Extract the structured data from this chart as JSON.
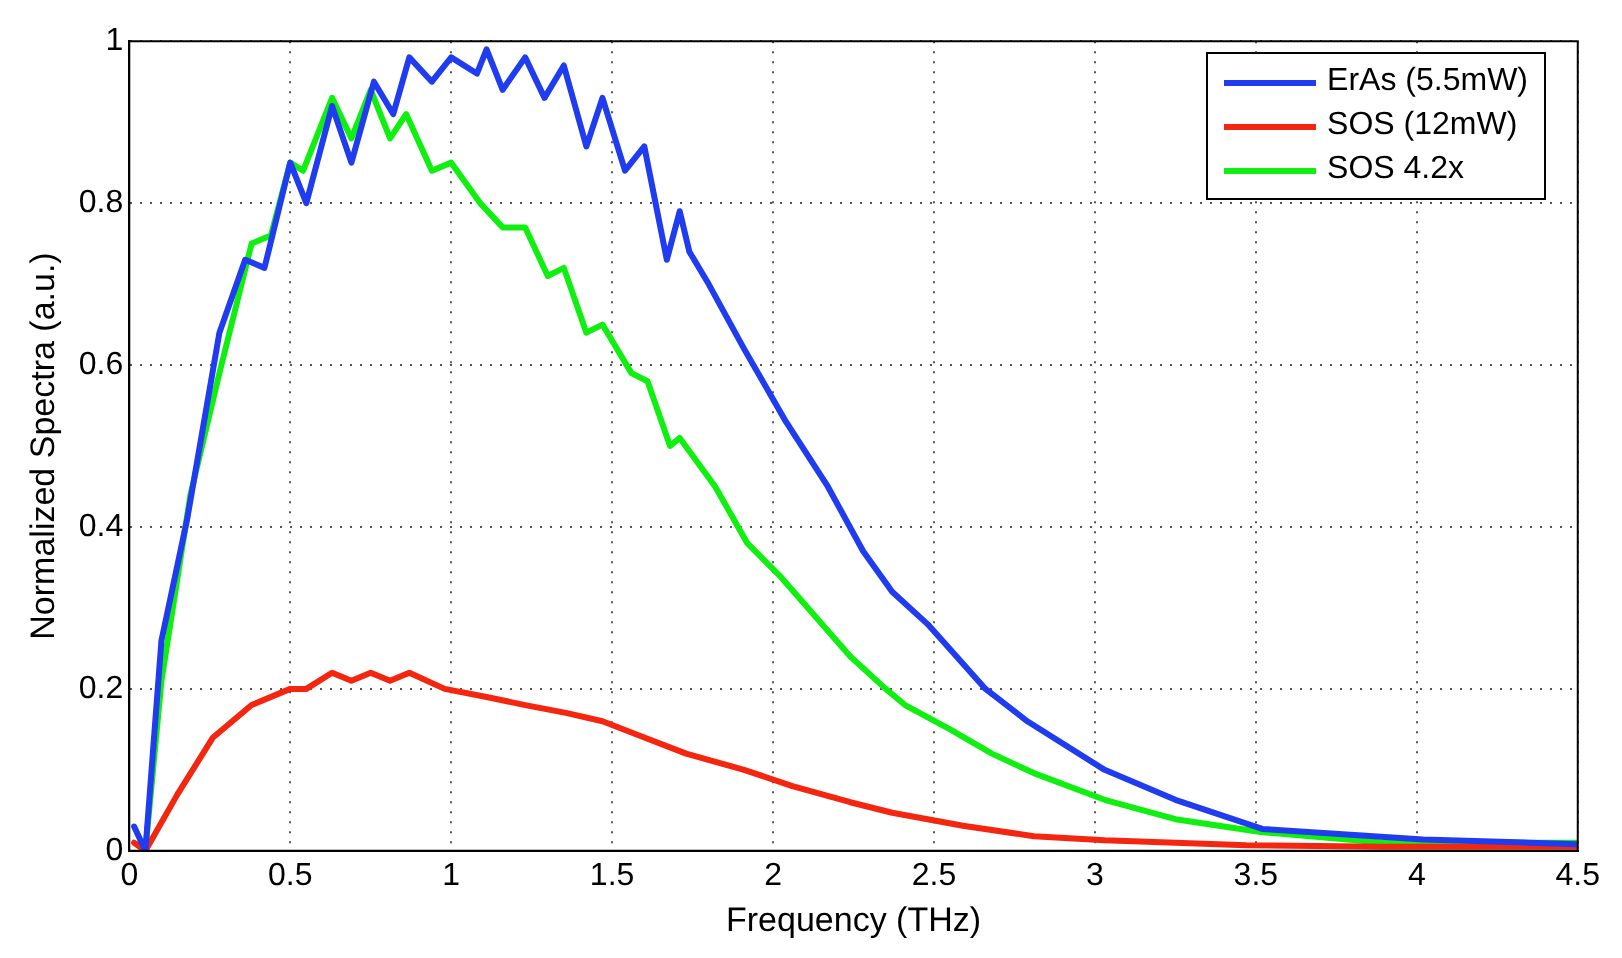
{
  "chart_data": {
    "type": "line",
    "xlabel": "Frequency (THz)",
    "ylabel": "Normalized Spectra (a.u.)",
    "xlim": [
      0,
      4.5
    ],
    "xticks": [
      0,
      0.5,
      1,
      1.5,
      2,
      2.5,
      3,
      3.5,
      4,
      4.5
    ],
    "ylim": [
      0,
      1
    ],
    "yticks": [
      0,
      0.2,
      0.4,
      0.6,
      0.8,
      1
    ],
    "grid": true,
    "legend": "top right",
    "marker": "none",
    "line_style": "solid",
    "series": [
      {
        "name": "ErAs (5.5mW)",
        "color": "#1f3cf0",
        "x": [
          0.015,
          0.05,
          0.1,
          0.18,
          0.28,
          0.36,
          0.42,
          0.5,
          0.55,
          0.63,
          0.69,
          0.76,
          0.82,
          0.87,
          0.94,
          1.0,
          1.08,
          1.11,
          1.16,
          1.23,
          1.29,
          1.35,
          1.42,
          1.47,
          1.54,
          1.6,
          1.67,
          1.71,
          1.74,
          1.8,
          1.91,
          2.04,
          2.17,
          2.28,
          2.37,
          2.48,
          2.66,
          2.79,
          3.03,
          3.25,
          3.52,
          4.02,
          4.35,
          4.5
        ],
        "values": [
          0.03,
          0,
          0.26,
          0.41,
          0.64,
          0.73,
          0.72,
          0.85,
          0.8,
          0.92,
          0.85,
          0.95,
          0.91,
          0.98,
          0.95,
          0.98,
          0.96,
          0.99,
          0.94,
          0.98,
          0.93,
          0.97,
          0.87,
          0.93,
          0.84,
          0.87,
          0.73,
          0.79,
          0.74,
          0.7,
          0.62,
          0.53,
          0.45,
          0.37,
          0.32,
          0.28,
          0.2,
          0.16,
          0.1,
          0.063,
          0.027,
          0.014,
          0.01,
          0.008
        ]
      },
      {
        "name": "SOS (12mW)",
        "color": "#f5260f",
        "x": [
          0.015,
          0.05,
          0.15,
          0.26,
          0.38,
          0.5,
          0.55,
          0.63,
          0.69,
          0.75,
          0.81,
          0.87,
          0.98,
          1.11,
          1.23,
          1.36,
          1.47,
          1.6,
          1.73,
          1.91,
          2.06,
          2.24,
          2.37,
          2.59,
          2.81,
          3.03,
          3.47,
          3.9,
          4.5
        ],
        "values": [
          0.01,
          0,
          0.07,
          0.14,
          0.18,
          0.2,
          0.2,
          0.22,
          0.21,
          0.22,
          0.21,
          0.22,
          0.2,
          0.19,
          0.18,
          0.17,
          0.16,
          0.14,
          0.12,
          0.1,
          0.08,
          0.06,
          0.047,
          0.031,
          0.018,
          0.013,
          0.007,
          0.005,
          0.005
        ]
      },
      {
        "name": "SOS 4.2x",
        "color": "#10f010",
        "x": [
          0.05,
          0.1,
          0.19,
          0.28,
          0.38,
          0.44,
          0.5,
          0.54,
          0.63,
          0.69,
          0.75,
          0.81,
          0.86,
          0.94,
          1.0,
          1.09,
          1.16,
          1.23,
          1.3,
          1.35,
          1.42,
          1.47,
          1.56,
          1.61,
          1.68,
          1.71,
          1.82,
          1.92,
          2.02,
          2.13,
          2.24,
          2.35,
          2.41,
          2.55,
          2.68,
          2.81,
          3.03,
          3.25,
          3.52,
          3.9,
          4.5
        ],
        "values": [
          0,
          0.21,
          0.44,
          0.59,
          0.75,
          0.76,
          0.85,
          0.84,
          0.93,
          0.88,
          0.94,
          0.88,
          0.91,
          0.84,
          0.85,
          0.8,
          0.77,
          0.77,
          0.71,
          0.72,
          0.64,
          0.65,
          0.59,
          0.58,
          0.5,
          0.51,
          0.45,
          0.38,
          0.34,
          0.29,
          0.24,
          0.2,
          0.18,
          0.15,
          0.12,
          0.096,
          0.063,
          0.039,
          0.023,
          0.01,
          0.01
        ]
      }
    ]
  }
}
